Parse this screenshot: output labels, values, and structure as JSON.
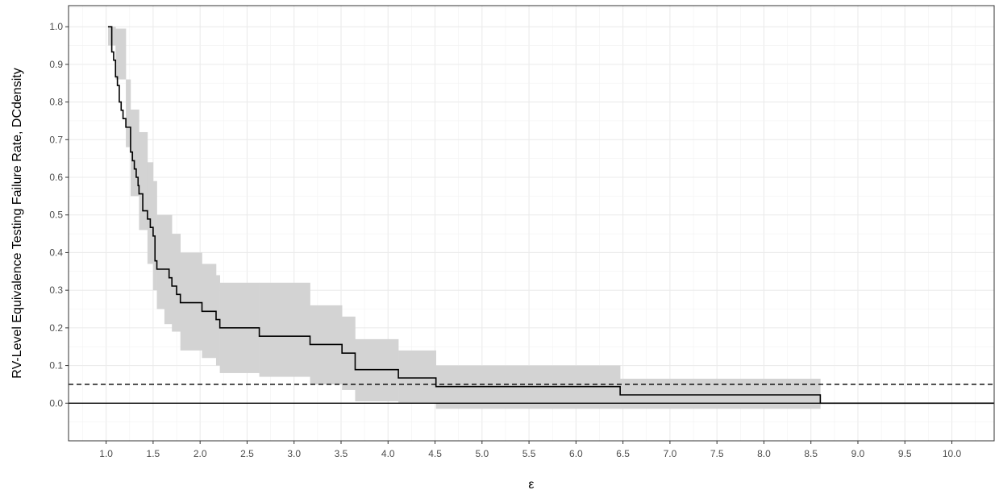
{
  "chart_data": {
    "type": "line",
    "subtype": "step-survival-with-confidence-band",
    "xlabel": "ε",
    "ylabel": "RV-Level Equivalence Testing Failure Rate, DCdensity",
    "xlim": [
      0.6,
      10.45
    ],
    "ylim": [
      -0.1,
      1.056
    ],
    "x_ticks": [
      1.0,
      1.5,
      2.0,
      2.5,
      3.0,
      3.5,
      4.0,
      4.5,
      5.0,
      5.5,
      6.0,
      6.5,
      7.0,
      7.5,
      8.0,
      8.5,
      9.0,
      9.5,
      10.0
    ],
    "x_tick_labels": [
      "1.0",
      "1.5",
      "2.0",
      "2.5",
      "3.0",
      "3.5",
      "4.0",
      "4.5",
      "5.0",
      "5.5",
      "6.0",
      "6.5",
      "7.0",
      "7.5",
      "8.0",
      "8.5",
      "9.0",
      "9.5",
      "10.0"
    ],
    "y_ticks": [
      0.0,
      0.1,
      0.2,
      0.3,
      0.4,
      0.5,
      0.6,
      0.7,
      0.8,
      0.9,
      1.0
    ],
    "y_tick_labels": [
      "0.0",
      "0.1",
      "0.2",
      "0.3",
      "0.4",
      "0.5",
      "0.6",
      "0.7",
      "0.8",
      "0.9",
      "1.0"
    ],
    "grid": true,
    "series": [
      {
        "kind": "step-line",
        "color": "#000000",
        "x": [
          1.02,
          1.06,
          1.08,
          1.1,
          1.12,
          1.14,
          1.16,
          1.18,
          1.21,
          1.26,
          1.28,
          1.3,
          1.32,
          1.34,
          1.35,
          1.39,
          1.42,
          1.44,
          1.47,
          1.5,
          1.52,
          1.54,
          1.62,
          1.67,
          1.7,
          1.75,
          1.79,
          2.02,
          2.17,
          2.21,
          2.63,
          3.17,
          3.51,
          3.65,
          4.11,
          4.51,
          6.47,
          8.6,
          10.45
        ],
        "y": [
          1.0,
          0.933,
          0.911,
          0.867,
          0.844,
          0.8,
          0.778,
          0.756,
          0.733,
          0.667,
          0.644,
          0.622,
          0.6,
          0.578,
          0.556,
          0.511,
          0.511,
          0.489,
          0.467,
          0.444,
          0.378,
          0.356,
          0.356,
          0.333,
          0.311,
          0.289,
          0.267,
          0.244,
          0.222,
          0.2,
          0.178,
          0.156,
          0.133,
          0.089,
          0.067,
          0.044,
          0.022,
          0.0,
          0.0
        ]
      },
      {
        "kind": "confidence-band",
        "color": "#d3d3d3",
        "x": [
          1.02,
          1.1,
          1.21,
          1.26,
          1.35,
          1.44,
          1.5,
          1.54,
          1.62,
          1.7,
          1.79,
          2.02,
          2.17,
          2.21,
          2.63,
          3.17,
          3.51,
          3.65,
          4.11,
          4.51,
          6.47,
          8.6
        ],
        "upper": [
          1.0,
          0.995,
          0.86,
          0.78,
          0.72,
          0.64,
          0.59,
          0.5,
          0.5,
          0.45,
          0.4,
          0.37,
          0.34,
          0.32,
          0.32,
          0.26,
          0.23,
          0.17,
          0.14,
          0.1,
          0.065,
          0.065
        ],
        "lower": [
          0.95,
          0.86,
          0.68,
          0.55,
          0.46,
          0.37,
          0.3,
          0.25,
          0.21,
          0.19,
          0.14,
          0.12,
          0.1,
          0.08,
          0.07,
          0.05,
          0.035,
          0.005,
          0.0,
          -0.015,
          -0.015,
          -0.015
        ]
      }
    ],
    "reference_lines": [
      {
        "y": 0.05,
        "style": "dashed",
        "color": "#000000"
      },
      {
        "y": 0.0,
        "style": "solid",
        "color": "#000000"
      }
    ]
  }
}
